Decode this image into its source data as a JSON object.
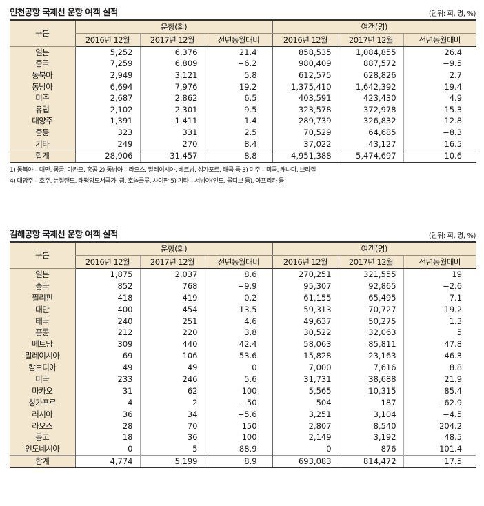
{
  "table1": {
    "title": "인천공항 국제선 운항 여객 실적",
    "unit": "(단위: 회, 명, %)",
    "group_label": "구분",
    "group_flights": "운항(회)",
    "group_passengers": "여객(명)",
    "sub_headers": [
      "2016년 12월",
      "2017년 12월",
      "전년동월대비",
      "2016년 12월",
      "2017년 12월",
      "전년동월대비"
    ],
    "rows": [
      [
        "일본",
        "5,252",
        "6,376",
        "21.4",
        "858,535",
        "1,084,855",
        "26.4"
      ],
      [
        "중국",
        "7,259",
        "6,809",
        "−6.2",
        "980,409",
        "887,572",
        "−9.5"
      ],
      [
        "동북아",
        "2,949",
        "3,121",
        "5.8",
        "612,575",
        "628,826",
        "2.7"
      ],
      [
        "동남아",
        "6,694",
        "7,976",
        "19.2",
        "1,375,410",
        "1,642,392",
        "19.4"
      ],
      [
        "미주",
        "2,687",
        "2,862",
        "6.5",
        "403,591",
        "423,430",
        "4.9"
      ],
      [
        "유럽",
        "2,102",
        "2,301",
        "9.5",
        "323,578",
        "372,978",
        "15.3"
      ],
      [
        "대양주",
        "1,391",
        "1,411",
        "1.4",
        "289,739",
        "326,832",
        "12.8"
      ],
      [
        "중동",
        "323",
        "331",
        "2.5",
        "70,529",
        "64,685",
        "−8.3"
      ],
      [
        "기타",
        "249",
        "270",
        "8.4",
        "37,022",
        "43,127",
        "16.5"
      ],
      [
        "합계",
        "28,906",
        "31,457",
        "8.8",
        "4,951,388",
        "5,474,697",
        "10.6"
      ]
    ],
    "notes": [
      "1) 동북아 – 대만, 몽골, 마카오, 홍콩    2) 동남아 – 라오스, 말레이시아, 베트남, 싱가포르, 태국 등    3) 미주 – 미국, 캐나다, 브라질",
      "4) 대양주 – 호주, 뉴질랜드, 태평양도서국가, 괌, 호놀룰루, 사이판    5) 기타 – 서남아(인도, 몰디브 등), 아프리카 등"
    ]
  },
  "table2": {
    "title": "김해공항 국제선 운항 여객 실적",
    "unit": "(단위: 회, 명, %)",
    "group_label": "구분",
    "group_flights": "운항(회)",
    "group_passengers": "여객(명)",
    "sub_headers": [
      "2016년 12월",
      "2017년 12월",
      "전년동월대비",
      "2016년 12월",
      "2017년 12월",
      "전년동월대비"
    ],
    "rows": [
      [
        "일본",
        "1,875",
        "2,037",
        "8.6",
        "270,251",
        "321,555",
        "19"
      ],
      [
        "중국",
        "852",
        "768",
        "−9.9",
        "95,307",
        "92,865",
        "−2.6"
      ],
      [
        "필리핀",
        "418",
        "419",
        "0.2",
        "61,155",
        "65,495",
        "7.1"
      ],
      [
        "대만",
        "400",
        "454",
        "13.5",
        "59,313",
        "70,727",
        "19.2"
      ],
      [
        "태국",
        "240",
        "251",
        "4.6",
        "49,637",
        "50,275",
        "1.3"
      ],
      [
        "홍콩",
        "212",
        "220",
        "3.8",
        "30,522",
        "32,063",
        "5"
      ],
      [
        "베트남",
        "309",
        "440",
        "42.4",
        "58,063",
        "85,811",
        "47.8"
      ],
      [
        "말레이시아",
        "69",
        "106",
        "53.6",
        "15,828",
        "23,163",
        "46.3"
      ],
      [
        "캄보디아",
        "49",
        "49",
        "0",
        "7,000",
        "7,616",
        "8.8"
      ],
      [
        "미국",
        "233",
        "246",
        "5.6",
        "31,731",
        "38,688",
        "21.9"
      ],
      [
        "마카오",
        "31",
        "62",
        "100",
        "5,565",
        "10,315",
        "85.4"
      ],
      [
        "싱가포르",
        "4",
        "2",
        "−50",
        "504",
        "187",
        "−62.9"
      ],
      [
        "러시아",
        "36",
        "34",
        "−5.6",
        "3,251",
        "3,104",
        "−4.5"
      ],
      [
        "라오스",
        "28",
        "70",
        "150",
        "2,807",
        "8,540",
        "204.2"
      ],
      [
        "몽고",
        "18",
        "36",
        "100",
        "2,149",
        "3,192",
        "48.5"
      ],
      [
        "인도네시아",
        "0",
        "5",
        "88.9",
        "0",
        "876",
        "101.4"
      ],
      [
        "합계",
        "4,774",
        "5,199",
        "8.9",
        "693,083",
        "814,472",
        "17.5"
      ]
    ]
  }
}
